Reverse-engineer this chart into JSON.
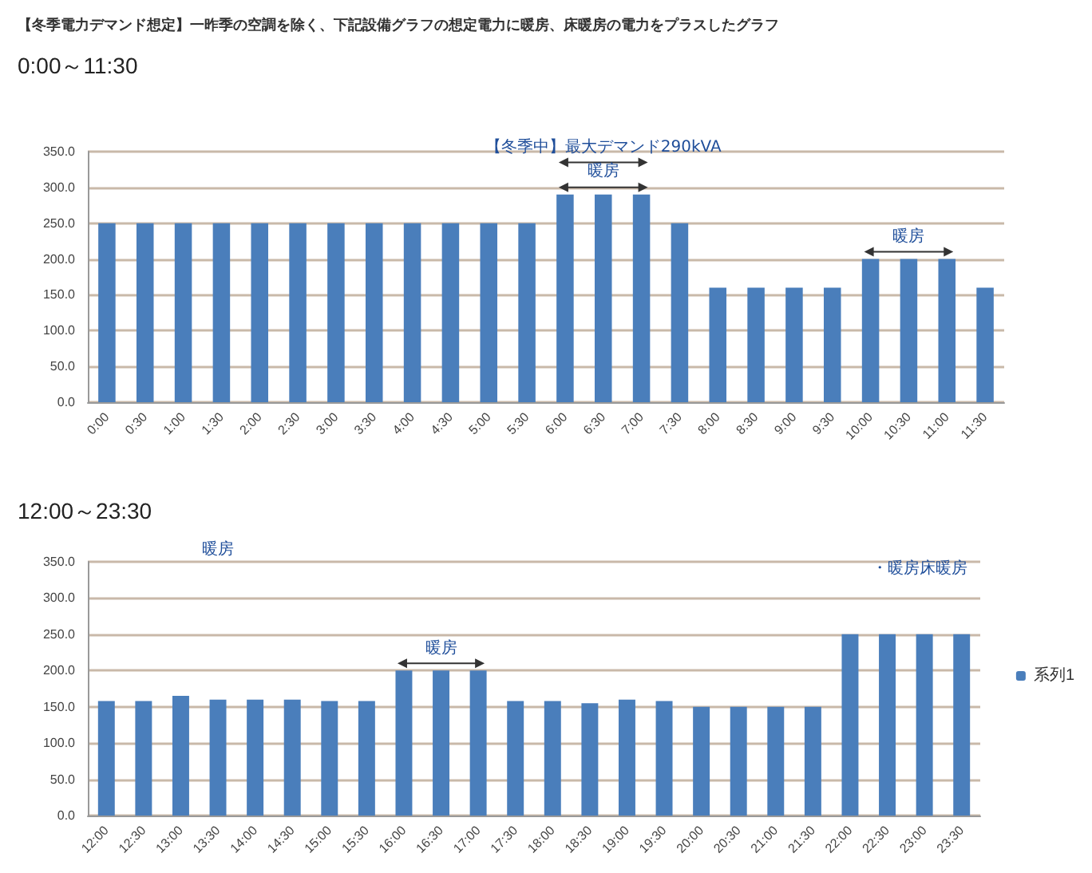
{
  "chart_data": [
    {
      "type": "bar",
      "title": "【冬季電力デマンド想定】一昨季の空調を除く、下記設備グラフの想定電力に暖房、床暖房の電力をプラスしたグラフ",
      "subtitle": "0:00～11:30",
      "categories": [
        "0:00",
        "0:30",
        "1:00",
        "1:30",
        "2:00",
        "2:30",
        "3:00",
        "3:30",
        "4:00",
        "4:30",
        "5:00",
        "5:30",
        "6:00",
        "6:30",
        "7:00",
        "7:30",
        "8:00",
        "8:30",
        "9:00",
        "9:30",
        "10:00",
        "10:30",
        "11:00",
        "11:30"
      ],
      "series": [
        {
          "color": "#4a7ebb",
          "values": [
            250,
            250,
            250,
            250,
            250,
            250,
            250,
            250,
            250,
            250,
            250,
            250,
            290,
            290,
            290,
            250,
            160,
            160,
            160,
            160,
            200,
            200,
            200,
            160
          ]
        }
      ],
      "ylim": [
        0,
        350
      ],
      "yticks": [
        {
          "value": 0,
          "label": "0.0"
        },
        {
          "value": 50,
          "label": "50.0"
        },
        {
          "value": 100,
          "label": "100.0"
        },
        {
          "value": 150,
          "label": "150.0"
        },
        {
          "value": 200,
          "label": "200.0"
        },
        {
          "value": 250,
          "label": "250.0"
        },
        {
          "value": 300,
          "label": "300.0"
        },
        {
          "value": 350,
          "label": "350.0"
        }
      ],
      "grid": "y",
      "legend": false,
      "annotations": [
        "【冬季中】最大デマンド290kVA",
        {
          "text": "暖房",
          "x": "6:30",
          "y": 300
        },
        {
          "text": "暖房",
          "x": "10:30",
          "y": 210
        }
      ]
    },
    {
      "type": "bar",
      "title": "12:00～23:30",
      "categories": [
        "12:00",
        "12:30",
        "13:00",
        "13:30",
        "14:00",
        "14:30",
        "15:00",
        "15:30",
        "16:00",
        "16:30",
        "17:00",
        "17:30",
        "18:00",
        "18:30",
        "19:00",
        "19:30",
        "20:00",
        "20:30",
        "21:00",
        "21:30",
        "22:00",
        "22:30",
        "23:00",
        "23:30"
      ],
      "series": [
        {
          "name": "系列1",
          "color": "#4a7ebb",
          "values": [
            158,
            158,
            165,
            160,
            160,
            160,
            158,
            158,
            200,
            200,
            200,
            158,
            158,
            155,
            160,
            158,
            150,
            150,
            150,
            150,
            250,
            250,
            250,
            250
          ]
        }
      ],
      "ylim": [
        0,
        350
      ],
      "yticks": [
        {
          "value": 0,
          "label": "0.0"
        },
        {
          "value": 50,
          "label": "50.0"
        },
        {
          "value": 100,
          "label": "100.0"
        },
        {
          "value": 150,
          "label": "150.0"
        },
        {
          "value": 200,
          "label": "200.0"
        },
        {
          "value": 250,
          "label": "250.0"
        },
        {
          "value": 300,
          "label": "300.0"
        },
        {
          "value": 350,
          "label": "350.0"
        }
      ],
      "grid": "y",
      "legend": "right",
      "annotations": [
        "暖房",
        {
          "text": "暖房",
          "x": "16:30",
          "y": 210
        },
        "・暖房床暖房"
      ]
    }
  ]
}
